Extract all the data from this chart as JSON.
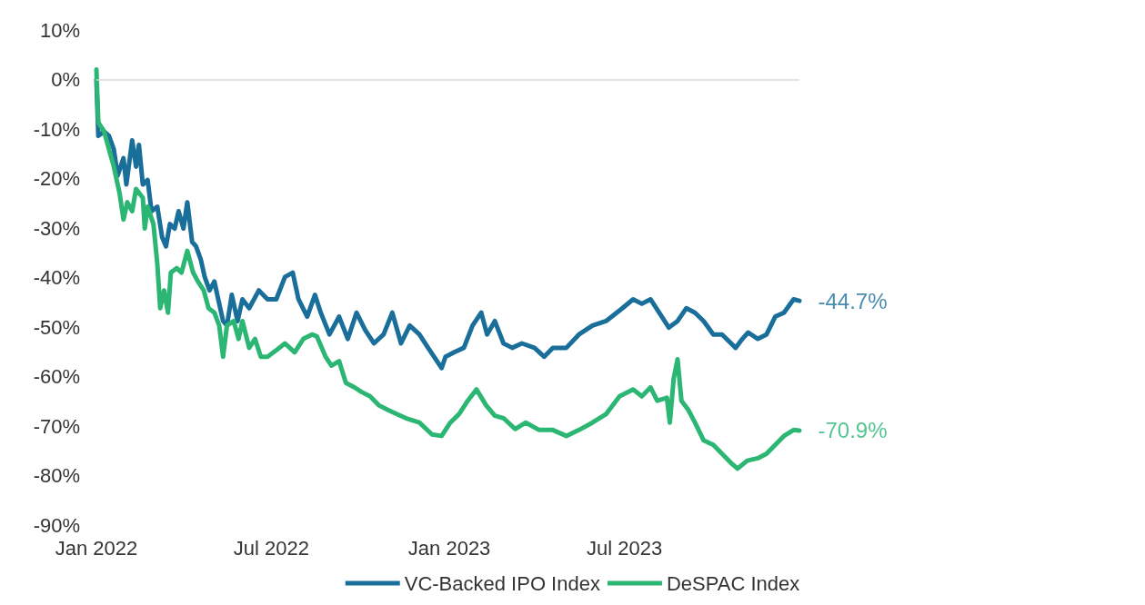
{
  "chart_data": {
    "type": "line",
    "xlim": [
      "2022-01-01",
      "2023-12-29"
    ],
    "xticks": [
      {
        "value": "2022-01-01",
        "label": "Jan 2022"
      },
      {
        "value": "2022-07-01",
        "label": "Jul 2022"
      },
      {
        "value": "2023-01-01",
        "label": "Jan 2023"
      },
      {
        "value": "2023-07-01",
        "label": "Jul 2023"
      }
    ],
    "ylim": [
      -90,
      10
    ],
    "yticks": [
      {
        "value": -90,
        "label": "-90%"
      },
      {
        "value": -80,
        "label": "-80%"
      },
      {
        "value": -70,
        "label": "-70%"
      },
      {
        "value": -60,
        "label": "-60%"
      },
      {
        "value": -50,
        "label": "-50%"
      },
      {
        "value": -40,
        "label": "-40%"
      },
      {
        "value": -30,
        "label": "-30%"
      },
      {
        "value": -20,
        "label": "-20%"
      },
      {
        "value": -10,
        "label": "-10%"
      },
      {
        "value": 0,
        "label": "0%"
      },
      {
        "value": 10,
        "label": "10%"
      }
    ],
    "grid": false,
    "legend": "bottom",
    "marker": "none",
    "line_style": "solid",
    "ref_lines": [
      {
        "axis": "y",
        "value": 0,
        "color": "#d9d9d9"
      }
    ],
    "series": [
      {
        "name": "VC-Backed IPO Index",
        "color": "#1a6f9a",
        "x": [
          "2022-01-01",
          "2022-01-03",
          "2022-01-09",
          "2022-01-14",
          "2022-01-19",
          "2022-01-23",
          "2022-01-29",
          "2022-02-01",
          "2022-02-07",
          "2022-02-11",
          "2022-02-14",
          "2022-02-18",
          "2022-02-23",
          "2022-02-27",
          "2022-03-05",
          "2022-03-10",
          "2022-03-14",
          "2022-03-18",
          "2022-03-23",
          "2022-03-27",
          "2022-04-01",
          "2022-04-05",
          "2022-04-10",
          "2022-04-14",
          "2022-04-19",
          "2022-04-23",
          "2022-04-28",
          "2022-05-03",
          "2022-05-07",
          "2022-05-12",
          "2022-05-16",
          "2022-05-21",
          "2022-05-27",
          "2022-06-01",
          "2022-06-08",
          "2022-06-18",
          "2022-06-27",
          "2022-07-06",
          "2022-07-15",
          "2022-07-23",
          "2022-07-29",
          "2022-08-07",
          "2022-08-15",
          "2022-08-21",
          "2022-08-30",
          "2022-09-09",
          "2022-09-18",
          "2022-09-27",
          "2022-10-06",
          "2022-10-15",
          "2022-10-25",
          "2022-11-03",
          "2022-11-12",
          "2022-11-21",
          "2022-12-01",
          "2022-12-10",
          "2022-12-24",
          "2022-12-28",
          "2023-01-06",
          "2023-01-16",
          "2023-01-25",
          "2023-02-03",
          "2023-02-09",
          "2023-02-17",
          "2023-02-26",
          "2023-03-07",
          "2023-03-17",
          "2023-03-30",
          "2023-04-09",
          "2023-04-18",
          "2023-05-02",
          "2023-05-15",
          "2023-05-29",
          "2023-06-12",
          "2023-06-29",
          "2023-07-10",
          "2023-07-19",
          "2023-07-28",
          "2023-08-06",
          "2023-08-16",
          "2023-08-25",
          "2023-09-03",
          "2023-09-12",
          "2023-09-21",
          "2023-10-01",
          "2023-10-10",
          "2023-10-24",
          "2023-10-31",
          "2023-11-06",
          "2023-11-16",
          "2023-11-25",
          "2023-12-04",
          "2023-12-13",
          "2023-12-23",
          "2023-12-29"
        ],
        "values": [
          0,
          -11.4,
          -10.5,
          -11.4,
          -14.1,
          -19.4,
          -15.9,
          -21.2,
          -12.3,
          -17.6,
          -13.2,
          -21.2,
          -20.3,
          -26.6,
          -25.7,
          -31.9,
          -33.7,
          -29.2,
          -30.1,
          -26.6,
          -30.1,
          -24.8,
          -32.8,
          -33.7,
          -36.4,
          -39.9,
          -42.6,
          -40.8,
          -44.4,
          -48.8,
          -49.7,
          -43.5,
          -48.8,
          -44.4,
          -46.2,
          -42.6,
          -44.4,
          -44.4,
          -39.9,
          -39.0,
          -44.4,
          -47.9,
          -43.5,
          -47.1,
          -51.5,
          -47.9,
          -52.4,
          -47.1,
          -50.6,
          -53.3,
          -51.5,
          -47.1,
          -53.3,
          -49.7,
          -51.5,
          -54.2,
          -58.3,
          -56.0,
          -55.1,
          -54.2,
          -49.7,
          -47.1,
          -51.5,
          -48.8,
          -53.3,
          -54.2,
          -53.3,
          -54.2,
          -56.0,
          -54.2,
          -54.2,
          -51.5,
          -49.7,
          -48.8,
          -46.2,
          -44.4,
          -45.3,
          -44.4,
          -47.1,
          -50.1,
          -48.8,
          -46.2,
          -47.1,
          -48.8,
          -51.5,
          -51.5,
          -54.2,
          -52.4,
          -51.1,
          -52.4,
          -51.5,
          -47.9,
          -47.1,
          -44.4,
          -44.7
        ]
      },
      {
        "name": "DeSPAC Index",
        "color": "#2bb673",
        "x": [
          "2022-01-01",
          "2022-01-03",
          "2022-01-09",
          "2022-01-14",
          "2022-01-19",
          "2022-01-25",
          "2022-01-29",
          "2022-02-02",
          "2022-02-07",
          "2022-02-11",
          "2022-02-18",
          "2022-02-20",
          "2022-02-23",
          "2022-03-01",
          "2022-03-05",
          "2022-03-08",
          "2022-03-12",
          "2022-03-16",
          "2022-03-19",
          "2022-03-25",
          "2022-03-30",
          "2022-04-05",
          "2022-04-11",
          "2022-04-16",
          "2022-04-22",
          "2022-04-27",
          "2022-05-03",
          "2022-05-08",
          "2022-05-12",
          "2022-05-16",
          "2022-05-23",
          "2022-05-28",
          "2022-06-01",
          "2022-06-08",
          "2022-06-14",
          "2022-06-20",
          "2022-06-27",
          "2022-07-06",
          "2022-07-15",
          "2022-07-25",
          "2022-08-03",
          "2022-08-12",
          "2022-08-17",
          "2022-08-26",
          "2022-09-01",
          "2022-09-09",
          "2022-09-16",
          "2022-09-25",
          "2022-10-02",
          "2022-10-11",
          "2022-10-20",
          "2022-10-29",
          "2022-11-08",
          "2022-11-17",
          "2022-12-01",
          "2022-12-14",
          "2022-12-24",
          "2023-01-02",
          "2023-01-11",
          "2023-01-20",
          "2023-01-29",
          "2023-02-08",
          "2023-02-17",
          "2023-02-26",
          "2023-03-10",
          "2023-03-21",
          "2023-04-04",
          "2023-04-18",
          "2023-05-02",
          "2023-05-15",
          "2023-05-29",
          "2023-06-12",
          "2023-06-26",
          "2023-07-10",
          "2023-07-19",
          "2023-07-28",
          "2023-08-04",
          "2023-08-14",
          "2023-08-17",
          "2023-08-21",
          "2023-08-25",
          "2023-08-29",
          "2023-09-05",
          "2023-09-12",
          "2023-09-21",
          "2023-10-01",
          "2023-10-10",
          "2023-10-19",
          "2023-10-26",
          "2023-11-05",
          "2023-11-16",
          "2023-11-25",
          "2023-12-04",
          "2023-12-13",
          "2023-12-23",
          "2023-12-29"
        ],
        "values": [
          2.0,
          -8.7,
          -10.5,
          -14.1,
          -17.6,
          -23.0,
          -28.3,
          -24.8,
          -26.6,
          -22.1,
          -23.9,
          -30.1,
          -25.7,
          -29.2,
          -37.3,
          -46.2,
          -42.6,
          -47.1,
          -39.0,
          -38.1,
          -39.0,
          -34.6,
          -39.0,
          -40.8,
          -42.6,
          -46.2,
          -47.1,
          -49.7,
          -56.0,
          -49.7,
          -48.8,
          -52.4,
          -48.8,
          -54.2,
          -52.4,
          -56.0,
          -56.0,
          -54.7,
          -53.3,
          -55.1,
          -52.4,
          -51.5,
          -51.9,
          -56.0,
          -57.8,
          -56.9,
          -61.3,
          -62.2,
          -63.1,
          -64.0,
          -65.8,
          -66.7,
          -67.6,
          -68.4,
          -69.3,
          -71.7,
          -72.0,
          -69.3,
          -67.6,
          -64.9,
          -62.6,
          -65.8,
          -67.9,
          -68.4,
          -70.6,
          -69.3,
          -70.8,
          -70.8,
          -72.0,
          -70.8,
          -69.3,
          -67.6,
          -64.0,
          -62.6,
          -64.0,
          -62.2,
          -64.9,
          -64.3,
          -69.3,
          -60.4,
          -56.5,
          -64.9,
          -66.7,
          -69.3,
          -72.9,
          -73.8,
          -75.6,
          -77.4,
          -78.6,
          -77.0,
          -76.5,
          -75.6,
          -73.8,
          -72.0,
          -70.8,
          -70.9
        ]
      }
    ],
    "annotations": [
      {
        "text": "-44.7%",
        "x": "2023-12-29",
        "y": -44.7
      },
      {
        "text": "-70.9%",
        "x": "2023-12-29",
        "y": -70.9
      }
    ]
  }
}
